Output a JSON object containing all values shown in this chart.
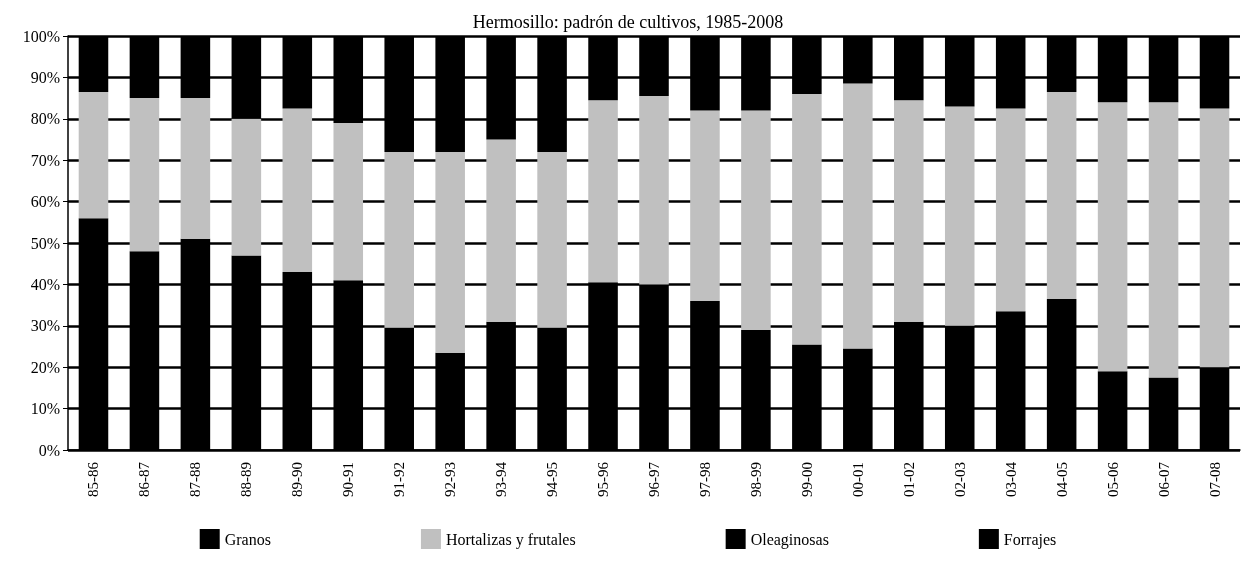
{
  "chart_data": {
    "type": "bar",
    "stacked": true,
    "title": "Hermosillo: padrón de cultivos, 1985-2008",
    "categories": [
      "85-86",
      "86-87",
      "87-88",
      "88-89",
      "89-90",
      "90-91",
      "91-92",
      "92-93",
      "93-94",
      "94-95",
      "95-96",
      "96-97",
      "97-98",
      "98-99",
      "99-00",
      "00-01",
      "01-02",
      "02-03",
      "03-04",
      "04-05",
      "05-06",
      "06-07",
      "07-08"
    ],
    "series": [
      {
        "name": "Granos",
        "color": "#000000",
        "values": [
          56,
          48,
          51,
          47,
          43,
          41,
          29.5,
          23.5,
          31,
          29.5,
          40.5,
          40,
          36,
          29,
          25.5,
          24.5,
          31,
          30,
          33.5,
          36.5,
          19,
          17.5,
          20
        ]
      },
      {
        "name": "Hortalizas y frutales",
        "color": "#c0c0c0",
        "values": [
          30.5,
          37,
          34,
          33,
          39.5,
          38,
          42.5,
          48.5,
          44,
          42.5,
          44,
          45.5,
          46,
          53,
          60.5,
          64,
          53.5,
          53,
          49,
          50,
          65,
          66.5,
          62.5
        ]
      },
      {
        "name": "Oleaginosas",
        "color": "#000000",
        "values": [
          null,
          null,
          null,
          null,
          null,
          null,
          null,
          null,
          null,
          null,
          null,
          null,
          null,
          null,
          null,
          null,
          null,
          null,
          null,
          null,
          null,
          null,
          null
        ]
      },
      {
        "name": "Forrajes",
        "color": "#000000",
        "values": [
          13.5,
          15,
          15,
          20,
          17.5,
          21,
          28,
          28,
          25,
          28,
          15.5,
          14.5,
          18,
          18,
          14,
          11.5,
          15.5,
          17,
          17.5,
          13.5,
          16,
          16,
          17.5
        ]
      }
    ],
    "ylim": [
      0,
      100
    ],
    "yticks": [
      {
        "value": 0,
        "label": "0%"
      },
      {
        "value": 10,
        "label": "10%"
      },
      {
        "value": 20,
        "label": "20%"
      },
      {
        "value": 30,
        "label": "30%"
      },
      {
        "value": 40,
        "label": "40%"
      },
      {
        "value": 50,
        "label": "50%"
      },
      {
        "value": 60,
        "label": "60%"
      },
      {
        "value": 70,
        "label": "70%"
      },
      {
        "value": 80,
        "label": "80%"
      },
      {
        "value": 90,
        "label": "90%"
      },
      {
        "value": 100,
        "label": "100%"
      }
    ],
    "grid": "y",
    "legend": "bottom"
  }
}
